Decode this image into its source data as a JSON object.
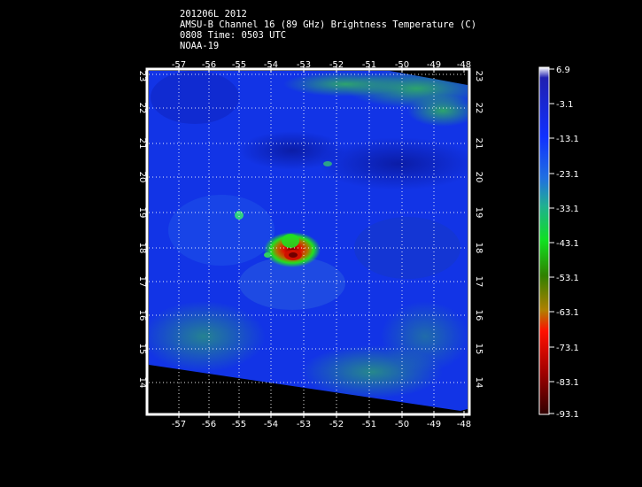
{
  "header": {
    "line1": "201206L 2012",
    "line2": "AMSU-B Channel 16 (89 GHz) Brightness Temperature (C)",
    "line3": "0808 Time: 0503 UTC",
    "line4": "NOAA-19"
  },
  "map": {
    "lon_ticks": [
      "-57",
      "-56",
      "-55",
      "-54",
      "-53",
      "-52",
      "-51",
      "-50",
      "-49",
      "-48"
    ],
    "lat_ticks": [
      "23",
      "22",
      "21",
      "20",
      "19",
      "18",
      "17",
      "16",
      "15",
      "14"
    ],
    "lon_range": [
      -58,
      -47.8
    ],
    "lat_range": [
      13.2,
      23.2
    ],
    "grid": true,
    "storm_center": {
      "lon": -53.4,
      "lat": 17.8
    }
  },
  "colorbar": {
    "labels": [
      "6.9",
      "-3.1",
      "-13.1",
      "-23.1",
      "-33.1",
      "-43.1",
      "-53.1",
      "-63.1",
      "-73.1",
      "-83.1",
      "-93.1"
    ],
    "colors": [
      "#ffffff",
      "#1010c0",
      "#1030ff",
      "#2070e0",
      "#20c080",
      "#10e020",
      "#308000",
      "#b08000",
      "#ff1000",
      "#a00000",
      "#400000"
    ]
  }
}
